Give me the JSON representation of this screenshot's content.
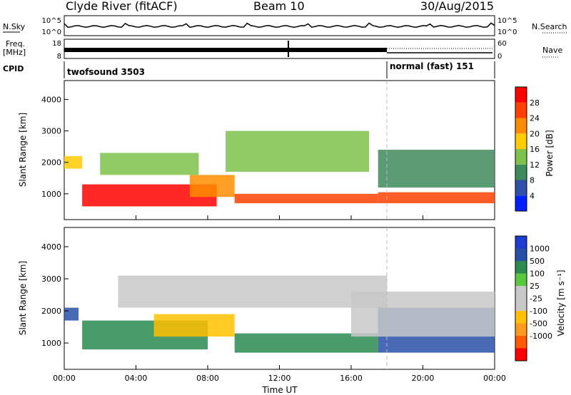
{
  "header": {
    "title": "Clyde River (fitACF)",
    "beam": "Beam 10",
    "date": "30/Aug/2015"
  },
  "side_labels": {
    "nsky": "N.Sky",
    "freq_line1": "Freq.",
    "freq_line2": "[MHz]",
    "cpid": "CPID",
    "nsearch": "N.Search",
    "nave": "Nave"
  },
  "strip_ticks": {
    "nsky_left": [
      "10^5",
      "10^0"
    ],
    "nsky_right": [
      "10^5",
      "10^0"
    ],
    "freq_left": [
      "18",
      "8"
    ],
    "nave_right": [
      "60",
      "0"
    ]
  },
  "cpid": [
    {
      "label": "twofsound 3503",
      "start_hour": 0
    },
    {
      "label": "normal (fast) 151",
      "start_hour": 18
    }
  ],
  "colors": {
    "background": "#ffffff",
    "power_scale": [
      "#0020ff",
      "#2f4fa8",
      "#3d8a5a",
      "#7fc24a",
      "#ffcc00",
      "#ff8c00",
      "#ff4000",
      "#ff0000"
    ],
    "velocity_scale": [
      "#ff0000",
      "#ff5a00",
      "#ff9a1e",
      "#ffc000",
      "#c8c8c8",
      "#c8c8c8",
      "#5ac83c",
      "#2a8a50",
      "#2850a8",
      "#1e3cd2"
    ]
  },
  "chart_data": [
    {
      "type": "heatmap",
      "title": "",
      "xlabel": "",
      "ylabel": "Slant Range [km]",
      "xlim": [
        0,
        24
      ],
      "ylim": [
        180,
        4600
      ],
      "xticks": [
        "00:00",
        "04:00",
        "08:00",
        "12:00",
        "16:00",
        "20:00",
        "00:00"
      ],
      "yticks": [
        1000,
        2000,
        3000,
        4000
      ],
      "colorbar": {
        "label": "Power [dB]",
        "ticks": [
          4,
          8,
          12,
          16,
          20,
          24,
          28
        ],
        "range": [
          0,
          32
        ]
      },
      "regions": [
        {
          "x": [
            1.0,
            8.5
          ],
          "y": [
            600,
            1300
          ],
          "value": 28
        },
        {
          "x": [
            7.0,
            9.5
          ],
          "y": [
            900,
            1600
          ],
          "value": 22
        },
        {
          "x": [
            9.5,
            17.5
          ],
          "y": [
            700,
            1000
          ],
          "value": 24
        },
        {
          "x": [
            17.5,
            24.0
          ],
          "y": [
            700,
            1050
          ],
          "value": 26
        },
        {
          "x": [
            0.0,
            1.0
          ],
          "y": [
            1800,
            2200
          ],
          "value": 16
        },
        {
          "x": [
            2.0,
            7.5
          ],
          "y": [
            1600,
            2300
          ],
          "value": 14
        },
        {
          "x": [
            9.0,
            17.0
          ],
          "y": [
            1700,
            3000
          ],
          "value": 12
        },
        {
          "x": [
            17.5,
            24.0
          ],
          "y": [
            1200,
            2400
          ],
          "value": 10
        }
      ]
    },
    {
      "type": "heatmap",
      "title": "",
      "xlabel": "Time UT",
      "ylabel": "Slant Range [km]",
      "xlim": [
        0,
        24
      ],
      "ylim": [
        180,
        4600
      ],
      "xticks": [
        "00:00",
        "04:00",
        "08:00",
        "12:00",
        "16:00",
        "20:00",
        "00:00"
      ],
      "yticks": [
        1000,
        2000,
        3000,
        4000
      ],
      "colorbar": {
        "label": "Velocity [m s⁻¹]",
        "ticks": [
          1000,
          500,
          100,
          25,
          -25,
          -100,
          -500,
          -1000
        ]
      },
      "regions": [
        {
          "x": [
            0.0,
            0.8
          ],
          "y": [
            1700,
            2100
          ],
          "value": 800
        },
        {
          "x": [
            1.0,
            8.0
          ],
          "y": [
            800,
            1700
          ],
          "value": 300
        },
        {
          "x": [
            5.0,
            9.5
          ],
          "y": [
            1200,
            1900
          ],
          "value": -300
        },
        {
          "x": [
            9.5,
            17.5
          ],
          "y": [
            700,
            1300
          ],
          "value": 150
        },
        {
          "x": [
            3.0,
            18.0
          ],
          "y": [
            2100,
            3100
          ],
          "value": 0
        },
        {
          "x": [
            17.5,
            24.0
          ],
          "y": [
            700,
            2100
          ],
          "value": 800
        },
        {
          "x": [
            16.0,
            24.0
          ],
          "y": [
            1200,
            2600
          ],
          "value": 0
        }
      ]
    }
  ]
}
